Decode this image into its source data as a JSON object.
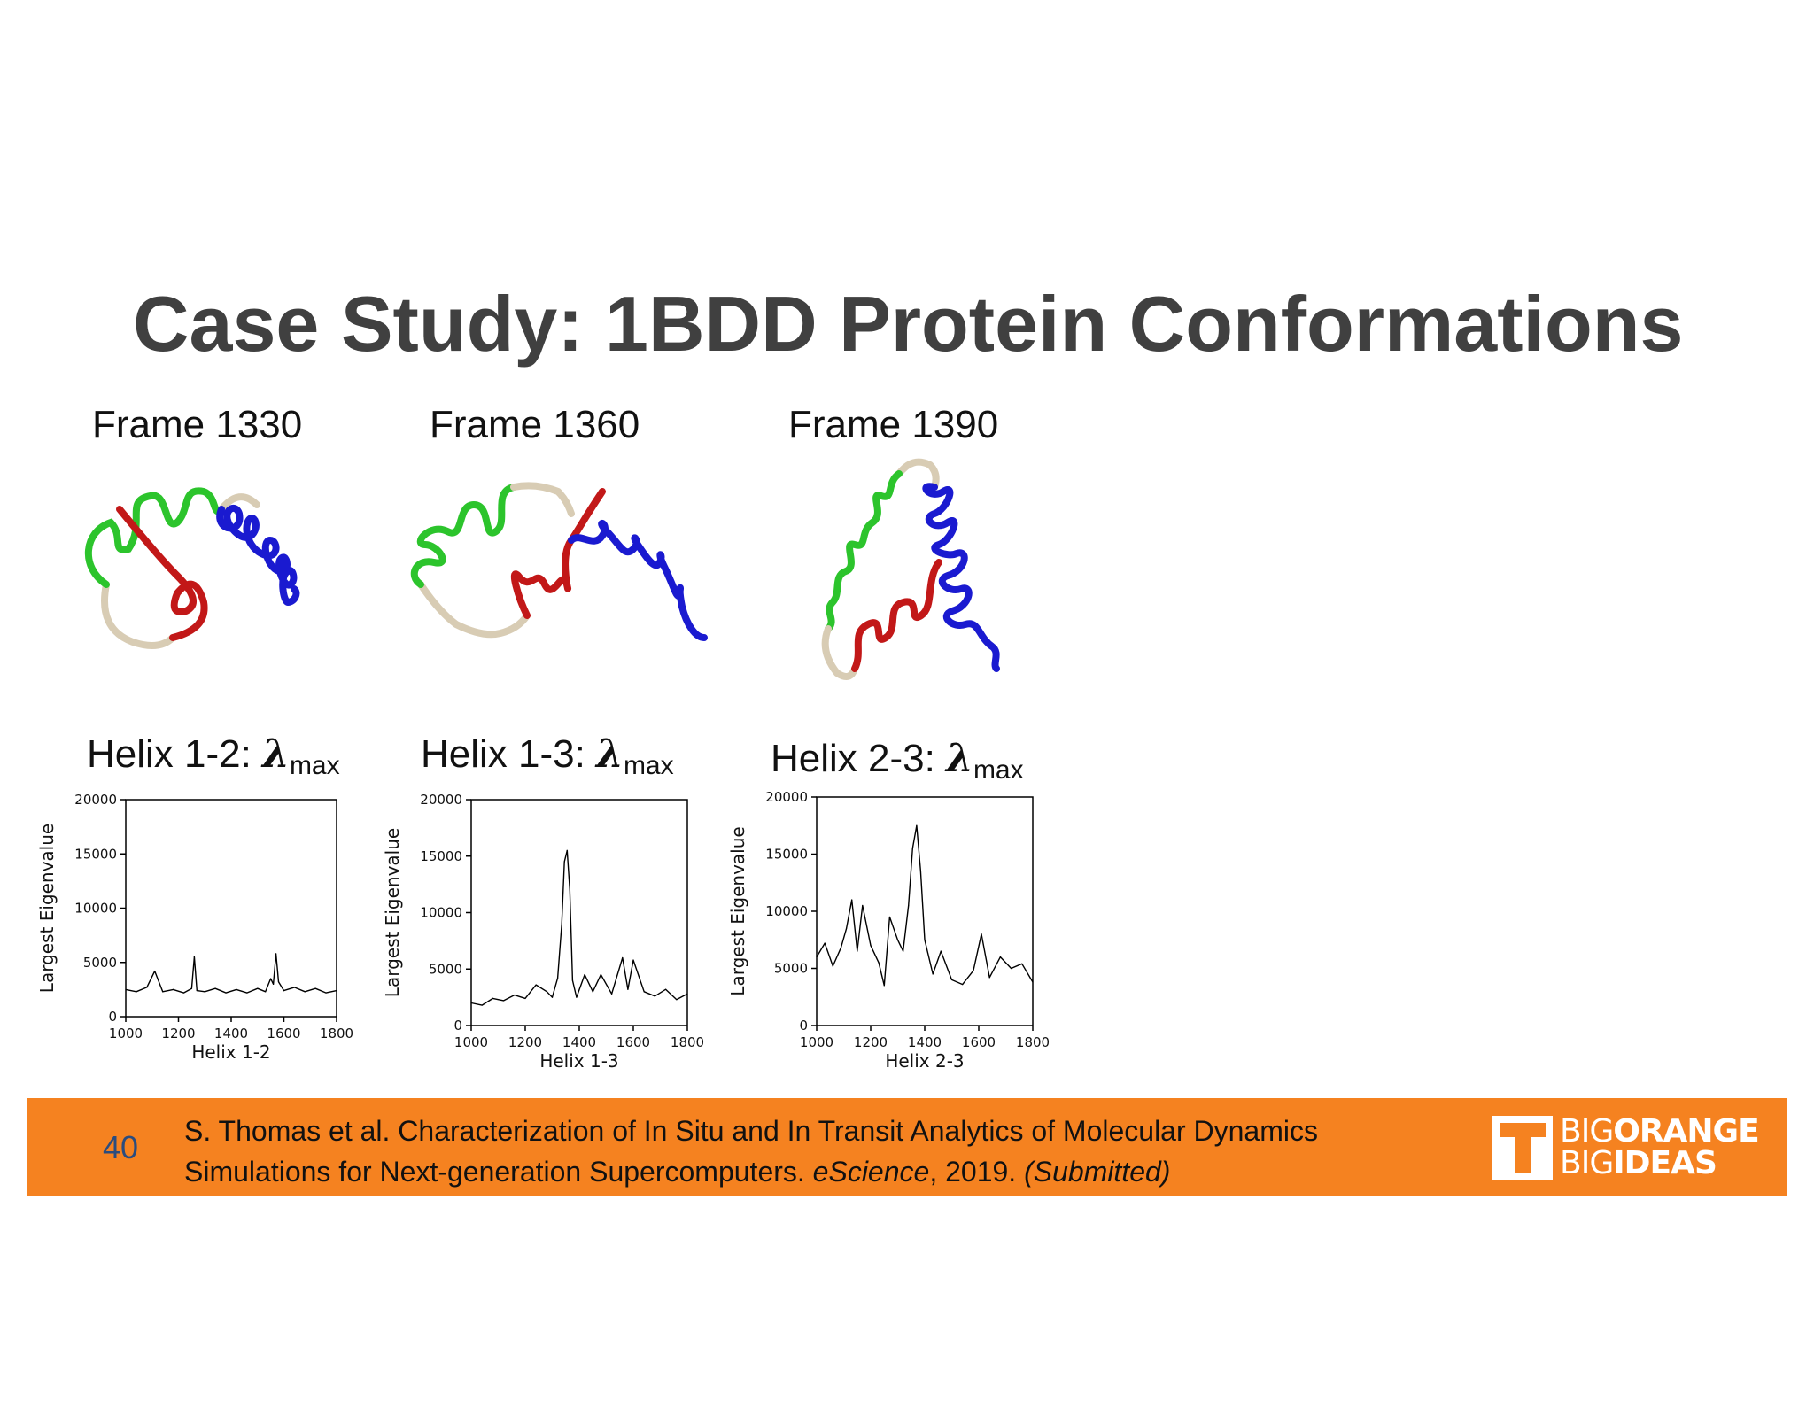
{
  "slide": {
    "title": "Case Study: 1BDD Protein Conformations",
    "number": "40"
  },
  "frames": [
    {
      "label": "Frame 1330"
    },
    {
      "label": "Frame 1360"
    },
    {
      "label": "Frame 1390"
    }
  ],
  "helix_labels": [
    {
      "prefix": "Helix 1-2: ",
      "symbol": "λ",
      "sub": "max"
    },
    {
      "prefix": "Helix 1-3: ",
      "symbol": "λ",
      "sub": "max"
    },
    {
      "prefix": "Helix 2-3: ",
      "symbol": "λ",
      "sub": "max"
    }
  ],
  "protein_colors": {
    "helix1": "#2cc42c",
    "helix2": "#d42020",
    "helix3": "#1a1ad0",
    "loop": "#d8ccb4"
  },
  "citation": {
    "line1": "S. Thomas et al.  Characterization of In Situ and In Transit Analytics of Molecular Dynamics",
    "line2_pre": "Simulations for Next-generation Supercomputers. ",
    "line2_journal": "eScience",
    "line2_mid": ", 2019. ",
    "line2_status": "(Submitted)"
  },
  "logo": {
    "line1_thin": "BIG",
    "line1_thick": "ORANGE",
    "line2_thin": "BIG",
    "line2_thick": "IDEAS"
  },
  "colors": {
    "footer": "#f58220",
    "title": "#404040",
    "slide_number": "#2b4c7e"
  },
  "chart_data": [
    {
      "type": "line",
      "xlabel": "Helix 1-2",
      "ylabel": "Largest Eigenvalue",
      "xlim": [
        1000,
        1800
      ],
      "ylim": [
        0,
        20000
      ],
      "xticks": [
        1000,
        1200,
        1400,
        1600,
        1800
      ],
      "yticks": [
        0,
        5000,
        10000,
        15000,
        20000
      ],
      "x": [
        1000,
        1040,
        1080,
        1110,
        1140,
        1180,
        1220,
        1250,
        1260,
        1270,
        1300,
        1340,
        1380,
        1420,
        1460,
        1500,
        1530,
        1550,
        1560,
        1570,
        1580,
        1600,
        1640,
        1680,
        1720,
        1760,
        1800
      ],
      "y": [
        2500,
        2300,
        2700,
        4200,
        2300,
        2500,
        2200,
        2600,
        5500,
        2400,
        2300,
        2600,
        2200,
        2500,
        2200,
        2600,
        2300,
        3500,
        3000,
        5800,
        3200,
        2400,
        2700,
        2300,
        2600,
        2200,
        2400
      ]
    },
    {
      "type": "line",
      "xlabel": "Helix 1-3",
      "ylabel": "Largest Eigenvalue",
      "xlim": [
        1000,
        1800
      ],
      "ylim": [
        0,
        20000
      ],
      "xticks": [
        1000,
        1200,
        1400,
        1600,
        1800
      ],
      "yticks": [
        0,
        5000,
        10000,
        15000,
        20000
      ],
      "x": [
        1000,
        1040,
        1080,
        1120,
        1160,
        1200,
        1240,
        1280,
        1300,
        1320,
        1335,
        1345,
        1355,
        1365,
        1375,
        1390,
        1420,
        1450,
        1480,
        1520,
        1560,
        1580,
        1600,
        1640,
        1680,
        1720,
        1760,
        1800
      ],
      "y": [
        2000,
        1800,
        2400,
        2200,
        2700,
        2400,
        3600,
        3000,
        2500,
        4200,
        9000,
        14500,
        15500,
        12000,
        4000,
        2500,
        4500,
        3000,
        4500,
        2800,
        6000,
        3200,
        5800,
        3000,
        2600,
        3200,
        2300,
        2800
      ]
    },
    {
      "type": "line",
      "xlabel": "Helix 2-3",
      "ylabel": "Largest Eigenvalue",
      "xlim": [
        1000,
        1800
      ],
      "ylim": [
        0,
        20000
      ],
      "xticks": [
        1000,
        1200,
        1400,
        1600,
        1800
      ],
      "yticks": [
        0,
        5000,
        10000,
        15000,
        20000
      ],
      "x": [
        1000,
        1030,
        1060,
        1090,
        1110,
        1130,
        1150,
        1170,
        1200,
        1230,
        1250,
        1270,
        1300,
        1320,
        1340,
        1355,
        1370,
        1385,
        1400,
        1430,
        1460,
        1500,
        1540,
        1580,
        1610,
        1640,
        1680,
        1720,
        1760,
        1800
      ],
      "y": [
        6000,
        7200,
        5200,
        6800,
        8500,
        11000,
        6500,
        10500,
        7000,
        5500,
        3500,
        9500,
        7500,
        6500,
        10500,
        15500,
        17500,
        13500,
        7500,
        4500,
        6500,
        4000,
        3600,
        4800,
        8000,
        4200,
        6000,
        5000,
        5400,
        3800
      ]
    }
  ]
}
